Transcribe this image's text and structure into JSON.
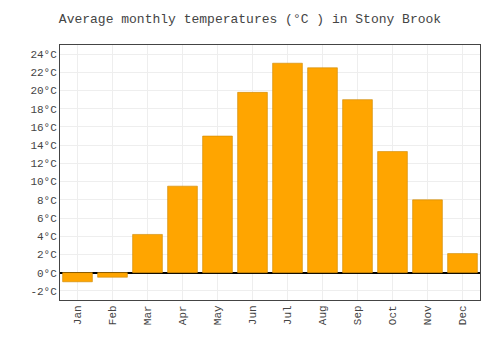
{
  "chart_data": {
    "type": "bar",
    "title": "Average monthly temperatures (°C ) in Stony Brook",
    "categories": [
      "Jan",
      "Feb",
      "Mar",
      "Apr",
      "May",
      "Jun",
      "Jul",
      "Aug",
      "Sep",
      "Oct",
      "Nov",
      "Dec"
    ],
    "values": [
      -1.0,
      -0.5,
      4.2,
      9.5,
      15.0,
      19.8,
      23.0,
      22.5,
      19.0,
      13.3,
      8.0,
      2.1
    ],
    "color": "#FFA500",
    "ylim": [
      -3,
      25
    ],
    "yticks": [
      {
        "value": -2,
        "label": "-2°C"
      },
      {
        "value": 0,
        "label": "0°C"
      },
      {
        "value": 2,
        "label": "2°C"
      },
      {
        "value": 4,
        "label": "4°C"
      },
      {
        "value": 6,
        "label": "6°C"
      },
      {
        "value": 8,
        "label": "8°C"
      },
      {
        "value": 10,
        "label": "10°C"
      },
      {
        "value": 12,
        "label": "12°C"
      },
      {
        "value": 14,
        "label": "14°C"
      },
      {
        "value": 16,
        "label": "16°C"
      },
      {
        "value": 18,
        "label": "18°C"
      },
      {
        "value": 20,
        "label": "20°C"
      },
      {
        "value": 22,
        "label": "22°C"
      },
      {
        "value": 24,
        "label": "24°C"
      }
    ],
    "grid": true
  }
}
